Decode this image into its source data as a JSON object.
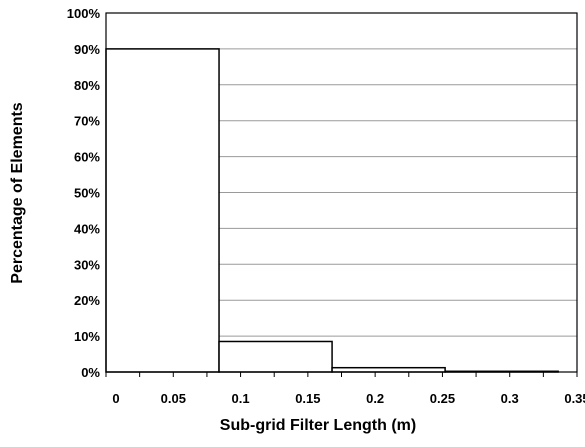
{
  "chart_data": {
    "type": "bar",
    "title": "",
    "xlabel": "Sub-grid Filter Length (m)",
    "ylabel": "Percentage of Elements",
    "xlim": [
      0,
      0.35
    ],
    "ylim": [
      0,
      100
    ],
    "x_ticks": [
      "0",
      "0.05",
      "0.1",
      "0.15",
      "0.2",
      "0.25",
      "0.3",
      "0.35"
    ],
    "y_ticks": [
      "0%",
      "10%",
      "20%",
      "30%",
      "40%",
      "50%",
      "60%",
      "70%",
      "80%",
      "90%",
      "100%"
    ],
    "grid": "horizontal",
    "bins": [
      {
        "x_start": 0.0,
        "x_end": 0.084,
        "value": 90
      },
      {
        "x_start": 0.084,
        "x_end": 0.168,
        "value": 8.5
      },
      {
        "x_start": 0.168,
        "x_end": 0.252,
        "value": 1.2
      },
      {
        "x_start": 0.252,
        "x_end": 0.336,
        "value": 0.2
      }
    ]
  }
}
